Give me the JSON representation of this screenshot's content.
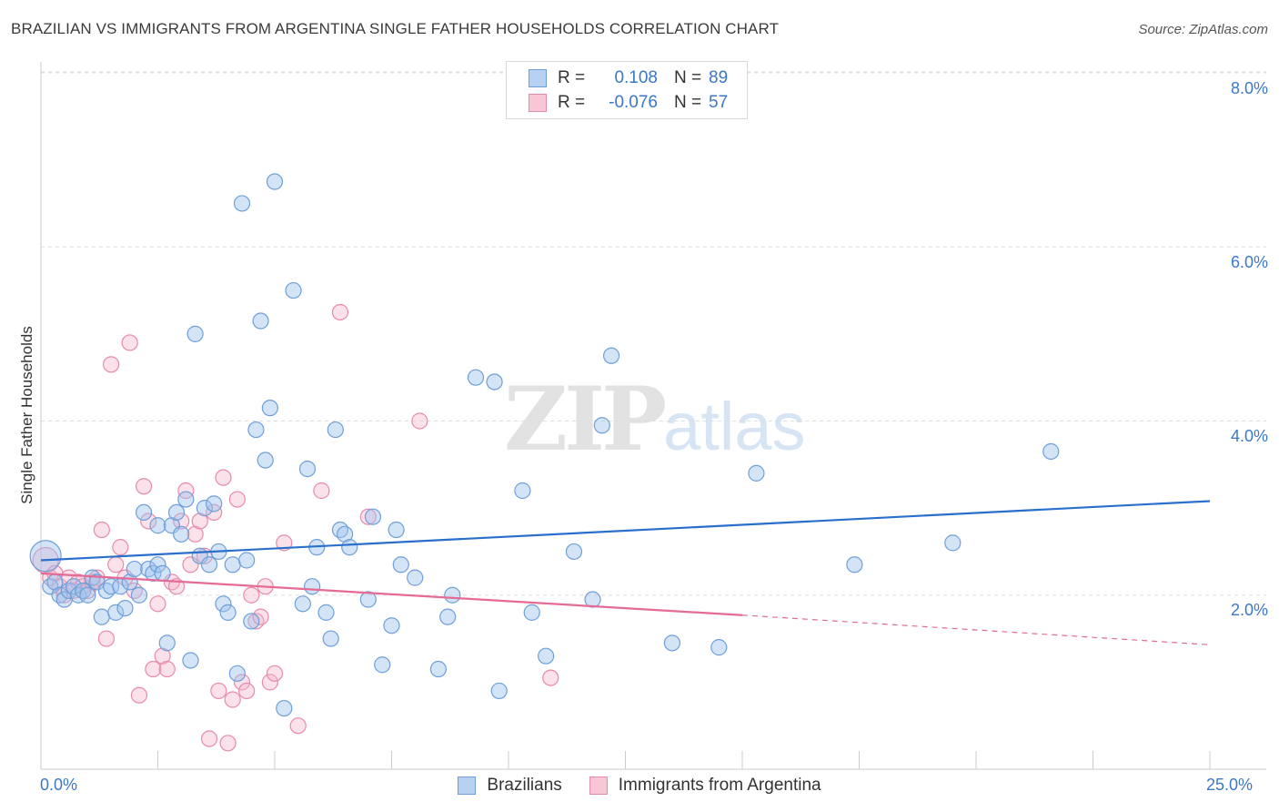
{
  "header": {
    "title": "BRAZILIAN VS IMMIGRANTS FROM ARGENTINA SINGLE FATHER HOUSEHOLDS CORRELATION CHART",
    "source": "Source: ZipAtlas.com"
  },
  "legend": {
    "rows": [
      {
        "r_label": "R =",
        "r_value": "0.108",
        "n_label": "N =",
        "n_value": "89"
      },
      {
        "r_label": "R =",
        "r_value": "-0.076",
        "n_label": "N =",
        "n_value": "57"
      }
    ]
  },
  "bottom_legend": {
    "series_a": "Brazilians",
    "series_b": "Immigrants from Argentina"
  },
  "watermark": {
    "zip": "ZIP",
    "atlas": "atlas"
  },
  "axes": {
    "ylabel": "Single Father Households",
    "x_min_label": "0.0%",
    "x_max_label": "25.0%",
    "y_tick_labels": [
      "2.0%",
      "4.0%",
      "6.0%",
      "8.0%"
    ]
  },
  "colors": {
    "blue": "#6f9fd8",
    "blue_fill": "rgba(160,196,238,0.45)",
    "blue_line": "#2a6fcc",
    "pink": "#e88aaa",
    "pink_fill": "rgba(246,180,203,0.40)",
    "pink_line": "#e36b96",
    "grid": "#dddddd",
    "tick_text": "#3b78c8"
  },
  "chart_data": {
    "type": "scatter",
    "xlim": [
      0,
      25
    ],
    "ylim": [
      0,
      8
    ],
    "yticks": [
      2,
      4,
      6,
      8
    ],
    "grid": true,
    "series": [
      {
        "name": "Brazilians",
        "color": "blue",
        "trend": {
          "x0": 0,
          "y0": 2.4,
          "x1": 25,
          "y1": 3.08
        },
        "points": [
          [
            0.1,
            2.45
          ],
          [
            0.2,
            2.1
          ],
          [
            0.3,
            2.15
          ],
          [
            0.4,
            2.0
          ],
          [
            0.5,
            1.95
          ],
          [
            0.6,
            2.05
          ],
          [
            0.7,
            2.1
          ],
          [
            0.8,
            2.0
          ],
          [
            0.9,
            2.05
          ],
          [
            1.0,
            2.0
          ],
          [
            1.1,
            2.2
          ],
          [
            1.2,
            2.15
          ],
          [
            1.3,
            1.75
          ],
          [
            1.4,
            2.05
          ],
          [
            1.5,
            2.1
          ],
          [
            1.6,
            1.8
          ],
          [
            1.7,
            2.1
          ],
          [
            1.8,
            1.85
          ],
          [
            1.9,
            2.15
          ],
          [
            2.0,
            2.3
          ],
          [
            2.1,
            2.0
          ],
          [
            2.2,
            2.95
          ],
          [
            2.3,
            2.3
          ],
          [
            2.4,
            2.25
          ],
          [
            2.5,
            2.35
          ],
          [
            2.5,
            2.8
          ],
          [
            2.6,
            2.25
          ],
          [
            2.7,
            1.45
          ],
          [
            2.8,
            2.8
          ],
          [
            2.9,
            2.95
          ],
          [
            3.0,
            2.7
          ],
          [
            3.1,
            3.1
          ],
          [
            3.2,
            1.25
          ],
          [
            3.3,
            5.0
          ],
          [
            3.4,
            2.45
          ],
          [
            3.5,
            3.0
          ],
          [
            3.6,
            2.35
          ],
          [
            3.7,
            3.05
          ],
          [
            3.8,
            2.5
          ],
          [
            3.9,
            1.9
          ],
          [
            4.0,
            1.8
          ],
          [
            4.1,
            2.35
          ],
          [
            4.2,
            1.1
          ],
          [
            4.3,
            6.5
          ],
          [
            4.4,
            2.4
          ],
          [
            4.5,
            1.7
          ],
          [
            4.6,
            3.9
          ],
          [
            4.7,
            5.15
          ],
          [
            4.8,
            3.55
          ],
          [
            4.9,
            4.15
          ],
          [
            5.0,
            6.75
          ],
          [
            5.2,
            0.7
          ],
          [
            5.4,
            5.5
          ],
          [
            5.6,
            1.9
          ],
          [
            5.7,
            3.45
          ],
          [
            5.8,
            2.1
          ],
          [
            5.9,
            2.55
          ],
          [
            6.1,
            1.8
          ],
          [
            6.2,
            1.5
          ],
          [
            6.3,
            3.9
          ],
          [
            6.4,
            2.75
          ],
          [
            6.5,
            2.7
          ],
          [
            6.6,
            2.55
          ],
          [
            7.0,
            1.95
          ],
          [
            7.1,
            2.9
          ],
          [
            7.3,
            1.2
          ],
          [
            7.5,
            1.65
          ],
          [
            7.6,
            2.75
          ],
          [
            7.7,
            2.35
          ],
          [
            8.0,
            2.2
          ],
          [
            8.5,
            1.15
          ],
          [
            8.7,
            1.75
          ],
          [
            8.8,
            2.0
          ],
          [
            9.3,
            4.5
          ],
          [
            9.7,
            4.45
          ],
          [
            9.8,
            0.9
          ],
          [
            10.3,
            3.2
          ],
          [
            10.5,
            1.8
          ],
          [
            10.8,
            1.3
          ],
          [
            11.4,
            2.5
          ],
          [
            11.8,
            1.95
          ],
          [
            12.0,
            3.95
          ],
          [
            12.2,
            4.75
          ],
          [
            13.5,
            1.45
          ],
          [
            14.5,
            1.4
          ],
          [
            15.3,
            3.4
          ],
          [
            17.4,
            2.35
          ],
          [
            19.5,
            2.6
          ],
          [
            21.6,
            3.65
          ]
        ]
      },
      {
        "name": "Immigrants from Argentina",
        "color": "pink",
        "trend": {
          "x0": 0,
          "y0": 2.25,
          "x1": 15,
          "y1": 1.77
        },
        "trend_dashed_to": {
          "x": 25,
          "y": 1.43
        },
        "points": [
          [
            0.1,
            2.4
          ],
          [
            0.2,
            2.2
          ],
          [
            0.3,
            2.25
          ],
          [
            0.4,
            2.1
          ],
          [
            0.5,
            2.0
          ],
          [
            0.6,
            2.2
          ],
          [
            0.7,
            2.05
          ],
          [
            0.8,
            2.15
          ],
          [
            0.9,
            2.1
          ],
          [
            1.0,
            2.05
          ],
          [
            1.1,
            2.15
          ],
          [
            1.2,
            2.2
          ],
          [
            1.3,
            2.75
          ],
          [
            1.4,
            1.5
          ],
          [
            1.5,
            4.65
          ],
          [
            1.6,
            2.35
          ],
          [
            1.7,
            2.55
          ],
          [
            1.8,
            2.2
          ],
          [
            1.9,
            4.9
          ],
          [
            2.0,
            2.05
          ],
          [
            2.1,
            0.85
          ],
          [
            2.2,
            3.25
          ],
          [
            2.3,
            2.85
          ],
          [
            2.4,
            1.15
          ],
          [
            2.5,
            1.9
          ],
          [
            2.6,
            1.3
          ],
          [
            2.7,
            1.15
          ],
          [
            2.8,
            2.15
          ],
          [
            2.9,
            2.1
          ],
          [
            3.0,
            2.85
          ],
          [
            3.1,
            3.2
          ],
          [
            3.2,
            2.35
          ],
          [
            3.3,
            2.7
          ],
          [
            3.4,
            2.85
          ],
          [
            3.5,
            2.45
          ],
          [
            3.6,
            0.35
          ],
          [
            3.7,
            2.95
          ],
          [
            3.8,
            0.9
          ],
          [
            3.9,
            3.35
          ],
          [
            4.0,
            0.3
          ],
          [
            4.1,
            0.8
          ],
          [
            4.2,
            3.1
          ],
          [
            4.3,
            1.0
          ],
          [
            4.4,
            0.9
          ],
          [
            4.5,
            2.0
          ],
          [
            4.6,
            1.7
          ],
          [
            4.7,
            1.75
          ],
          [
            4.8,
            2.1
          ],
          [
            4.9,
            1.0
          ],
          [
            5.0,
            1.1
          ],
          [
            5.2,
            2.6
          ],
          [
            5.5,
            0.5
          ],
          [
            6.0,
            3.2
          ],
          [
            6.4,
            5.25
          ],
          [
            7.0,
            2.9
          ],
          [
            8.1,
            4.0
          ],
          [
            10.9,
            1.05
          ]
        ]
      }
    ]
  }
}
